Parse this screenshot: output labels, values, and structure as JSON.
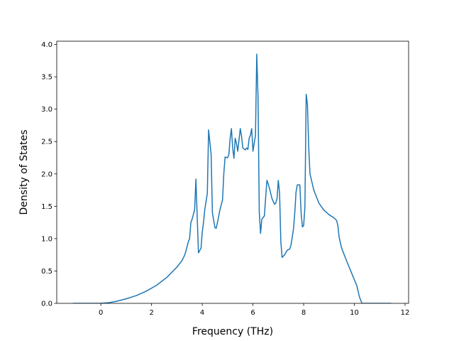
{
  "chart_data": {
    "type": "line",
    "title": "",
    "xlabel": "Frequency (THz)",
    "ylabel": "Density of States",
    "xlim": [
      -1.74,
      12.14
    ],
    "ylim": [
      0.0,
      4.05
    ],
    "xticks": [
      0,
      2,
      4,
      6,
      8,
      10,
      12
    ],
    "yticks": [
      0.0,
      0.5,
      1.0,
      1.5,
      2.0,
      2.5,
      3.0,
      3.5,
      4.0
    ],
    "xtick_labels": [
      "0",
      "2",
      "4",
      "6",
      "8",
      "10",
      "12"
    ],
    "ytick_labels": [
      "0.0",
      "0.5",
      "1.0",
      "1.5",
      "2.0",
      "2.5",
      "3.0",
      "3.5",
      "4.0"
    ],
    "grid": false,
    "legend": "none",
    "colors": {
      "series": "#1f77b4"
    },
    "series": [
      {
        "x": [
          -1.1,
          0.0,
          0.3,
          0.6,
          1.0,
          1.4,
          1.8,
          2.2,
          2.6,
          3.0,
          3.2,
          3.3,
          3.35,
          3.45,
          3.5,
          3.55,
          3.6,
          3.7,
          3.75,
          3.85,
          3.95,
          4.0,
          4.05,
          4.1,
          4.2,
          4.25,
          4.35,
          4.4,
          4.5,
          4.55,
          4.6,
          4.7,
          4.8,
          4.85,
          4.9,
          5.0,
          5.05,
          5.1,
          5.15,
          5.2,
          5.25,
          5.3,
          5.35,
          5.4,
          5.5,
          5.55,
          5.6,
          5.7,
          5.75,
          5.8,
          5.85,
          5.9,
          5.95,
          6.0,
          6.1,
          6.15,
          6.2,
          6.25,
          6.3,
          6.35,
          6.45,
          6.55,
          6.6,
          6.7,
          6.75,
          6.85,
          6.9,
          6.95,
          7.0,
          7.05,
          7.1,
          7.15,
          7.25,
          7.35,
          7.45,
          7.5,
          7.6,
          7.65,
          7.7,
          7.75,
          7.85,
          7.9,
          7.95,
          8.0,
          8.05,
          8.1,
          8.15,
          8.2,
          8.25,
          8.4,
          8.6,
          8.8,
          9.0,
          9.2,
          9.3,
          9.35,
          9.4,
          9.5,
          9.7,
          9.9,
          10.1,
          10.2,
          10.3,
          10.35,
          10.4,
          10.45,
          11.45
        ],
        "y": [
          0.0,
          0.0,
          0.01,
          0.03,
          0.07,
          0.12,
          0.19,
          0.28,
          0.4,
          0.56,
          0.66,
          0.74,
          0.8,
          0.95,
          1.0,
          1.25,
          1.3,
          1.45,
          1.92,
          0.78,
          0.85,
          1.1,
          1.25,
          1.45,
          1.7,
          2.68,
          2.3,
          1.4,
          1.17,
          1.16,
          1.25,
          1.45,
          1.6,
          2.0,
          2.26,
          2.25,
          2.3,
          2.55,
          2.7,
          2.4,
          2.24,
          2.55,
          2.47,
          2.35,
          2.7,
          2.58,
          2.4,
          2.37,
          2.4,
          2.38,
          2.55,
          2.6,
          2.7,
          2.35,
          2.6,
          3.85,
          3.2,
          1.4,
          1.08,
          1.3,
          1.35,
          1.9,
          1.85,
          1.7,
          1.62,
          1.53,
          1.55,
          1.62,
          1.9,
          1.7,
          0.95,
          0.71,
          0.75,
          0.82,
          0.84,
          0.9,
          1.15,
          1.4,
          1.72,
          1.83,
          1.83,
          1.4,
          1.18,
          1.2,
          1.5,
          3.23,
          3.07,
          2.4,
          2.0,
          1.75,
          1.55,
          1.44,
          1.37,
          1.32,
          1.28,
          1.2,
          1.02,
          0.85,
          0.65,
          0.46,
          0.27,
          0.1,
          0.0,
          0.0,
          0.0,
          0.0,
          0.0
        ]
      }
    ]
  }
}
